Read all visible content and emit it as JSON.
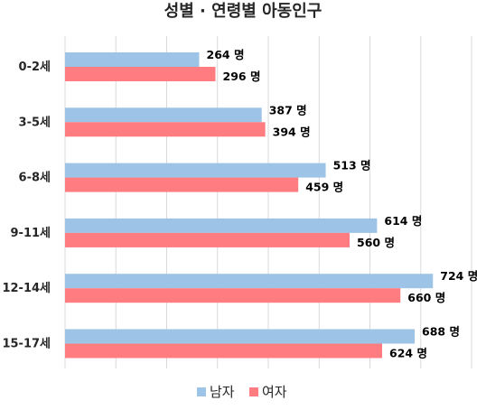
{
  "chart_data": {
    "type": "bar",
    "orientation": "horizontal",
    "title": "성별 · 연령별 아동인구",
    "categories": [
      "0-2세",
      "3-5세",
      "6-8세",
      "9-11세",
      "12-14세",
      "15-17세"
    ],
    "series": [
      {
        "name": "남자",
        "color": "#9dc3e6",
        "values": [
          264,
          387,
          513,
          614,
          724,
          688
        ],
        "labels": [
          "264 명",
          "387 명",
          "513 명",
          "614 명",
          "724 명",
          "688 명"
        ]
      },
      {
        "name": "여자",
        "color": "#ff7c80",
        "values": [
          296,
          394,
          459,
          560,
          660,
          624
        ],
        "labels": [
          "296 명",
          "394 명",
          "459 명",
          "560 명",
          "660 명",
          "624 명"
        ]
      }
    ],
    "xlim": [
      0,
      800
    ],
    "x_tick_step": 100,
    "grid": true,
    "legend_position": "bottom"
  }
}
